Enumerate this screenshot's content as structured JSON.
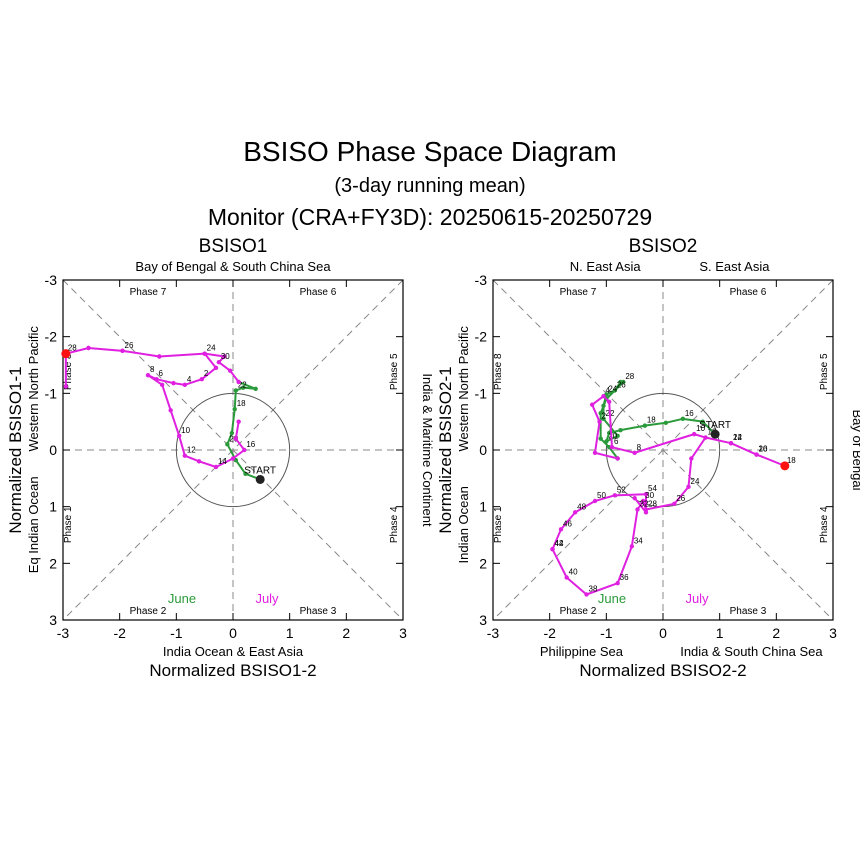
{
  "header": {
    "title": "BSISO Phase Space Diagram",
    "subtitle": "(3-day running mean)",
    "period": "Monitor (CRA+FY3D): 20250615-20250729"
  },
  "colors": {
    "june": "#2a9a3a",
    "july": "#e020e0",
    "start_marker": "#222222",
    "end_marker": "#ff1111",
    "axis": "#000000",
    "guide": "#888888"
  },
  "chart_data": [
    {
      "type": "line",
      "title": "BSISO1",
      "xlabel": "Normalized BSISO1-2",
      "ylabel": "Normalized BSISO1-1",
      "xlim": [
        -3,
        3
      ],
      "ylim": [
        3,
        -3
      ],
      "y_inverted": true,
      "xticks": [
        "-3",
        "-2",
        "-1",
        "0",
        "1",
        "2",
        "3"
      ],
      "yticks": [
        "-3",
        "-2",
        "-1",
        "0",
        "1",
        "2",
        "3"
      ],
      "region_labels": {
        "top": [
          "Bay of Bengal & South China Sea"
        ],
        "bottom": [
          "India Ocean & East Asia"
        ],
        "left": [
          "Eq Indian Ocean",
          "Western North Pacific"
        ],
        "right": [
          "India & Maritime Continent"
        ]
      },
      "phase_labels": [
        "Phase 1",
        "Phase 2",
        "Phase 3",
        "Phase 4",
        "Phase 5",
        "Phase 6",
        "Phase 7",
        "Phase 8"
      ],
      "month_labels": [
        "June",
        "July"
      ],
      "start_label": "START",
      "series": [
        {
          "name": "June",
          "points": [
            [
              0.48,
              0.52
            ],
            [
              0.22,
              0.42
            ],
            [
              0.05,
              0.18
            ],
            [
              -0.1,
              -0.1
            ],
            [
              -0.02,
              -0.3
            ],
            [
              0.03,
              -0.72
            ],
            [
              0.05,
              -1.05
            ],
            [
              0.18,
              -1.1
            ],
            [
              0.4,
              -1.08
            ],
            [
              0.1,
              -1.2
            ]
          ],
          "day_labels": [
            [
              "START",
              0
            ],
            [
              "18",
              5
            ],
            [
              "20",
              3
            ],
            [
              "22",
              6
            ]
          ]
        },
        {
          "name": "July",
          "points": [
            [
              0.1,
              -1.2
            ],
            [
              -0.05,
              -1.4
            ],
            [
              -0.25,
              -1.55
            ],
            [
              -0.15,
              -1.65
            ],
            [
              -0.5,
              -1.7
            ],
            [
              -1.3,
              -1.65
            ],
            [
              -1.95,
              -1.75
            ],
            [
              -2.55,
              -1.8
            ],
            [
              -2.95,
              -1.7
            ],
            [
              -2.95,
              -1.12
            ],
            [
              -2.95,
              -1.7
            ],
            [
              -2.55,
              -1.8
            ],
            [
              -1.95,
              -1.75
            ],
            [
              -1.3,
              -1.65
            ],
            [
              -0.5,
              -1.7
            ],
            [
              -0.3,
              -1.45
            ],
            [
              -0.55,
              -1.25
            ],
            [
              -0.85,
              -1.15
            ],
            [
              -1.05,
              -1.18
            ],
            [
              -1.35,
              -1.25
            ],
            [
              -1.5,
              -1.32
            ],
            [
              -1.25,
              -1.15
            ],
            [
              -1.1,
              -0.7
            ],
            [
              -0.95,
              -0.25
            ],
            [
              -0.85,
              0.1
            ],
            [
              -0.6,
              0.2
            ],
            [
              -0.3,
              0.3
            ],
            [
              0.0,
              0.15
            ],
            [
              0.2,
              0.0
            ],
            [
              0.05,
              -0.2
            ],
            [
              0.1,
              -0.5
            ]
          ],
          "day_labels": [
            [
              "24",
              4
            ],
            [
              "26",
              6
            ],
            [
              "28",
              8
            ],
            [
              "30",
              2
            ],
            [
              "2",
              16
            ],
            [
              "4",
              17
            ],
            [
              "6",
              19
            ],
            [
              "8",
              20
            ],
            [
              "10",
              23
            ],
            [
              "12",
              24
            ],
            [
              "14",
              26
            ],
            [
              "16",
              28
            ]
          ]
        }
      ]
    },
    {
      "type": "line",
      "title": "BSISO2",
      "xlabel": "Normalized BSISO2-2",
      "ylabel": "Normalized BSISO2-1",
      "xlim": [
        -3,
        3
      ],
      "ylim": [
        3,
        -3
      ],
      "y_inverted": true,
      "xticks": [
        "-3",
        "-2",
        "-1",
        "0",
        "1",
        "2",
        "3"
      ],
      "yticks": [
        "-3",
        "-2",
        "-1",
        "0",
        "1",
        "2",
        "3"
      ],
      "region_labels": {
        "top": [
          "N. East Asia",
          "S. East Asia"
        ],
        "bottom": [
          "Philippine Sea",
          "India & South China Sea"
        ],
        "left": [
          "Indian Ocean",
          "Western North Pacific"
        ],
        "right": [
          "Bay of Bengal"
        ]
      },
      "phase_labels": [
        "Phase 1",
        "Phase 2",
        "Phase 3",
        "Phase 4",
        "Phase 5",
        "Phase 6",
        "Phase 7",
        "Phase 8"
      ],
      "month_labels": [
        "June",
        "July"
      ],
      "start_label": "START",
      "series": [
        {
          "name": "June",
          "points": [
            [
              0.92,
              -0.28
            ],
            [
              0.7,
              -0.5
            ],
            [
              0.35,
              -0.55
            ],
            [
              0.05,
              -0.48
            ],
            [
              -0.32,
              -0.43
            ],
            [
              -0.75,
              -0.35
            ],
            [
              -0.95,
              -0.3
            ],
            [
              -1.0,
              -0.15
            ],
            [
              -0.8,
              -0.25
            ],
            [
              -1.05,
              -0.55
            ],
            [
              -1.05,
              -0.78
            ],
            [
              -1.0,
              -0.98
            ],
            [
              -0.85,
              -1.05
            ],
            [
              -0.75,
              -1.2
            ],
            [
              -0.7,
              -1.2
            ],
            [
              -1.0,
              -0.9
            ],
            [
              -1.1,
              -0.65
            ],
            [
              -1.1,
              -0.2
            ],
            [
              -0.95,
              -0.05
            ],
            [
              -0.8,
              0.15
            ]
          ],
          "day_labels": [
            [
              "START",
              0
            ],
            [
              "16",
              2
            ],
            [
              "18",
              4
            ],
            [
              "20",
              7
            ],
            [
              "22",
              9
            ],
            [
              "24",
              11
            ],
            [
              "26",
              12
            ],
            [
              "28",
              14
            ]
          ]
        },
        {
          "name": "July",
          "points": [
            [
              -0.8,
              0.15
            ],
            [
              -1.2,
              0.05
            ],
            [
              -1.12,
              -0.5
            ],
            [
              -1.25,
              -0.8
            ],
            [
              -1.05,
              -0.95
            ],
            [
              -0.95,
              -0.85
            ],
            [
              -0.9,
              -0.05
            ],
            [
              -0.5,
              0.05
            ],
            [
              0.55,
              -0.28
            ],
            [
              0.75,
              -0.22
            ],
            [
              1.2,
              -0.12
            ],
            [
              1.65,
              0.08
            ],
            [
              2.15,
              0.28
            ],
            [
              1.65,
              0.08
            ],
            [
              1.2,
              -0.12
            ],
            [
              0.75,
              -0.22
            ],
            [
              0.5,
              0.15
            ],
            [
              0.45,
              0.65
            ],
            [
              0.2,
              0.95
            ],
            [
              -0.3,
              1.05
            ],
            [
              -0.35,
              0.9
            ],
            [
              -0.45,
              1.05
            ],
            [
              -0.55,
              1.7
            ],
            [
              -0.8,
              2.35
            ],
            [
              -1.35,
              2.55
            ],
            [
              -1.7,
              2.25
            ],
            [
              -1.95,
              1.75
            ],
            [
              -1.95,
              1.75
            ],
            [
              -1.8,
              1.4
            ],
            [
              -1.55,
              1.1
            ],
            [
              -1.2,
              0.9
            ],
            [
              -0.85,
              0.8
            ],
            [
              -0.3,
              0.78
            ],
            [
              -0.3,
              1.1
            ],
            [
              -0.5,
              0.85
            ]
          ],
          "day_labels": [
            [
              "2",
              2
            ],
            [
              "4",
              4
            ],
            [
              "6",
              6
            ],
            [
              "8",
              7
            ],
            [
              "10",
              8
            ],
            [
              "12",
              9
            ],
            [
              "14",
              10
            ],
            [
              "16",
              11
            ],
            [
              "18",
              12
            ],
            [
              "20",
              13
            ],
            [
              "22",
              14
            ],
            [
              "24",
              17
            ],
            [
              "26",
              18
            ],
            [
              "28",
              19
            ],
            [
              "30",
              20
            ],
            [
              "32",
              21
            ],
            [
              "34",
              22
            ],
            [
              "36",
              23
            ],
            [
              "38",
              24
            ],
            [
              "40",
              25
            ],
            [
              "42",
              26
            ],
            [
              "44",
              27
            ],
            [
              "46",
              28
            ],
            [
              "48",
              29
            ],
            [
              "50",
              30
            ],
            [
              "52",
              31
            ],
            [
              "54",
              32
            ]
          ]
        }
      ]
    }
  ]
}
